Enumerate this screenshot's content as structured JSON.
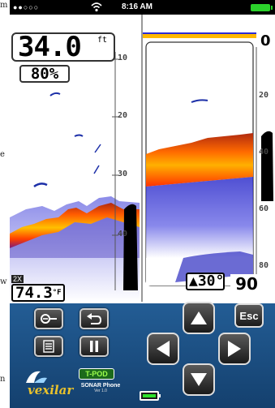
{
  "gutter_labels": [
    "m",
    "e",
    "w",
    "n"
  ],
  "status_bar": {
    "signal": "●●○○○",
    "time": "8:16 AM"
  },
  "readouts": {
    "depth_value": "34.0",
    "depth_unit": "ft",
    "sensitivity": "80%",
    "zoom": "2X",
    "water_temp": "74.3",
    "temp_unit": "°F",
    "beam_angle": "▲30°",
    "depth_range": "90",
    "surface_depth": "0"
  },
  "depth_ticks_left": [
    "10",
    "20",
    "30",
    "40"
  ],
  "depth_ticks_right": [
    "20",
    "40",
    "60",
    "80"
  ],
  "controls": {
    "zoom_button": "zoom",
    "back_button": "back",
    "menu_button": "menu",
    "pause_button": "pause",
    "esc_label": "Esc"
  },
  "branding": {
    "brand": "vexilar",
    "tpod": "T-POD",
    "product_line1": "SONAR Phone",
    "product_line2": "Ver 1.0"
  },
  "colors": {
    "panel_top": "#235d95",
    "panel_bottom": "#14406e",
    "battery": "#2bd12b"
  }
}
